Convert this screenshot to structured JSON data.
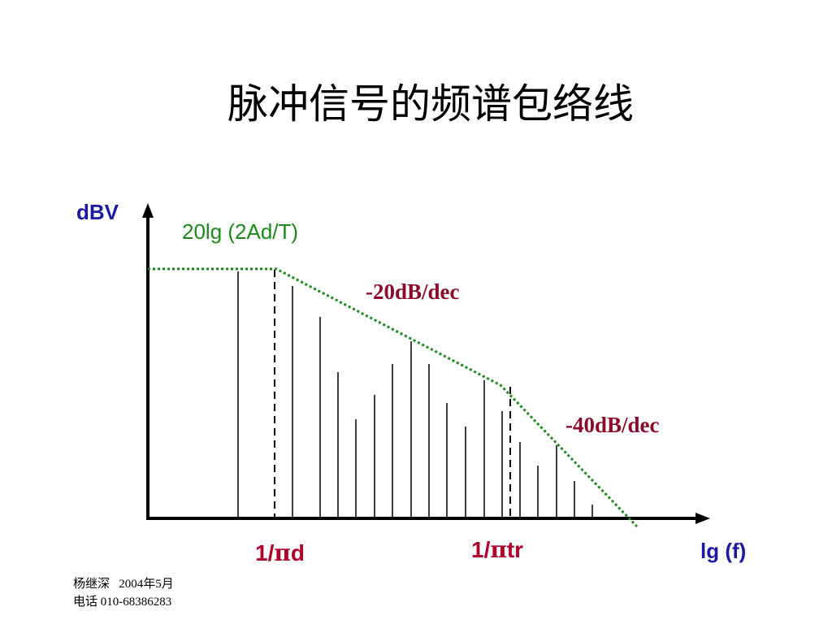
{
  "title": "脉冲信号的频谱包络线",
  "diagram": {
    "y_axis_label": "dBV",
    "x_axis_label": "lg (f)",
    "level_label": "20lg (2Ad/T)",
    "slope1_label": "-20dB/dec",
    "slope2_label": "-40dB/dec",
    "corner1_label_prefix": "1/",
    "corner1_label_symbol": "π",
    "corner1_label_suffix": "d",
    "corner2_label_prefix": "1/",
    "corner2_label_symbol": "π",
    "corner2_label_suffix": "tr"
  },
  "colors": {
    "axis": "#000000",
    "envelope": "#1a8a1a",
    "level_label": "#1a8a1a",
    "slope_labels": "#8b0a2a",
    "corner_labels": "#b0002a",
    "axis_labels": "#1a1aa0"
  },
  "footer": {
    "line1": "杨继深   2004年5月",
    "line2": "电话 010-68386283"
  }
}
